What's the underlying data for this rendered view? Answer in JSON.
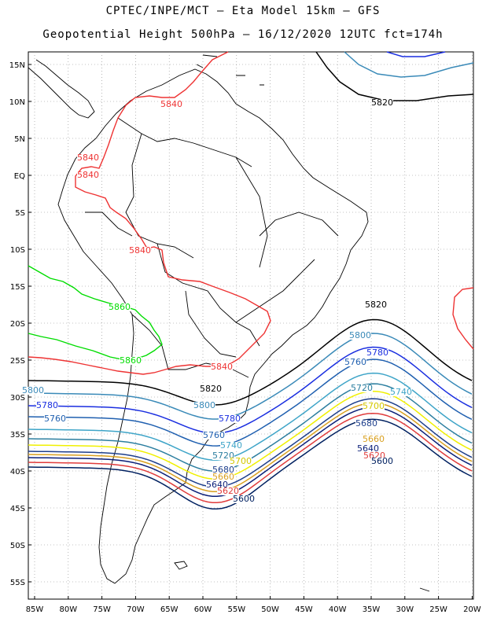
{
  "header": {
    "line1": "CPTEC/INPE/MCT –  Eta Model 15km – GFS",
    "line2": "Geopotential Height 500hPa – 16/12/2020 12UTC fct=174h"
  },
  "axes": {
    "lat_labels": [
      "15N",
      "10N",
      "5N",
      "EQ",
      "5S",
      "10S",
      "15S",
      "20S",
      "25S",
      "30S",
      "35S",
      "40S",
      "45S",
      "50S",
      "55S"
    ],
    "lon_labels": [
      "85W",
      "80W",
      "75W",
      "70W",
      "65W",
      "60W",
      "55W",
      "50W",
      "45W",
      "40W",
      "35W",
      "30W",
      "25W",
      "20W"
    ]
  },
  "contours": [
    {
      "value": "5600",
      "color": "#002060"
    },
    {
      "value": "5620",
      "color": "#e03c3c"
    },
    {
      "value": "5640",
      "color": "#0a1e78"
    },
    {
      "value": "5660",
      "color": "#d9a020"
    },
    {
      "value": "5680",
      "color": "#1e3f8c"
    },
    {
      "value": "5700",
      "color": "#f0f000"
    },
    {
      "value": "5720",
      "color": "#2d7fa0"
    },
    {
      "value": "5740",
      "color": "#3fa5c8"
    },
    {
      "value": "5760",
      "color": "#2060b0"
    },
    {
      "value": "5780",
      "color": "#1a2ee0"
    },
    {
      "value": "5800",
      "color": "#3a8ab8"
    },
    {
      "value": "5820",
      "color": "#000000"
    },
    {
      "value": "5840",
      "color": "#ee3333"
    },
    {
      "value": "5860",
      "color": "#00dd00"
    }
  ],
  "contour_labels": [
    {
      "text": "5820",
      "color": "#000000"
    },
    {
      "text": "5840",
      "color": "#ee3333"
    },
    {
      "text": "5840",
      "color": "#ee3333"
    },
    {
      "text": "5840",
      "color": "#ee3333"
    },
    {
      "text": "5840",
      "color": "#ee3333"
    },
    {
      "text": "5860",
      "color": "#00dd00"
    },
    {
      "text": "5860",
      "color": "#00dd00"
    },
    {
      "text": "5820",
      "color": "#000000"
    },
    {
      "text": "5800",
      "color": "#3a8ab8"
    },
    {
      "text": "5780",
      "color": "#1a2ee0"
    },
    {
      "text": "5760",
      "color": "#2060b0"
    },
    {
      "text": "5720",
      "color": "#2d7fa0"
    },
    {
      "text": "5740",
      "color": "#3fa5c8"
    },
    {
      "text": "5700",
      "color": "#d4c800"
    },
    {
      "text": "5680",
      "color": "#1e3f8c"
    },
    {
      "text": "5660",
      "color": "#d9a020"
    },
    {
      "text": "5640",
      "color": "#0a1e78"
    },
    {
      "text": "5620",
      "color": "#e03c3c"
    },
    {
      "text": "5600",
      "color": "#002060"
    },
    {
      "text": "5840",
      "color": "#ee3333"
    },
    {
      "text": "5820",
      "color": "#000000"
    },
    {
      "text": "5800",
      "color": "#3a8ab8"
    },
    {
      "text": "5780",
      "color": "#1a2ee0"
    },
    {
      "text": "5760",
      "color": "#2060b0"
    },
    {
      "text": "5740",
      "color": "#3fa5c8"
    },
    {
      "text": "5720",
      "color": "#2d7fa0"
    },
    {
      "text": "5700",
      "color": "#d4c800"
    },
    {
      "text": "5680",
      "color": "#1e3f8c"
    },
    {
      "text": "5660",
      "color": "#d9a020"
    },
    {
      "text": "5640",
      "color": "#0a1e78"
    },
    {
      "text": "5620",
      "color": "#e03c3c"
    },
    {
      "text": "5600",
      "color": "#002060"
    },
    {
      "text": "5800",
      "color": "#3a8ab8"
    },
    {
      "text": "5780",
      "color": "#1a2ee0"
    },
    {
      "text": "5760",
      "color": "#2060b0"
    }
  ]
}
